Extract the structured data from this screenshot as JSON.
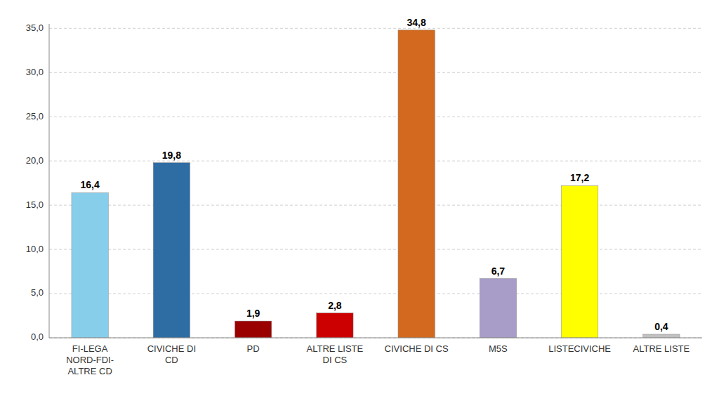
{
  "chart_data": {
    "type": "bar",
    "categories": [
      "FI-LEGA\nNORD-FDI-\nALTRE CD",
      "CIVICHE DI\nCD",
      "PD",
      "ALTRE LISTE\nDI CS",
      "CIVICHE DI CS",
      "M5S",
      "LISTECIVICHE",
      "ALTRE LISTE"
    ],
    "values": [
      16.4,
      19.8,
      1.9,
      2.8,
      34.8,
      6.7,
      17.2,
      0.4
    ],
    "value_labels": [
      "16,4",
      "19,8",
      "1,9",
      "2,8",
      "34,8",
      "6,7",
      "17,2",
      "0,4"
    ],
    "colors": [
      "#87CEEB",
      "#2E6DA4",
      "#9B0000",
      "#CC0000",
      "#D2691E",
      "#A89CC8",
      "#FFFF00",
      "#C0C0C0"
    ],
    "ylim": [
      0,
      35.5
    ],
    "yticks": [
      {
        "value": 0.0,
        "label": "0,0"
      },
      {
        "value": 5.0,
        "label": "5,0"
      },
      {
        "value": 10.0,
        "label": "10,0"
      },
      {
        "value": 15.0,
        "label": "15,0"
      },
      {
        "value": 20.0,
        "label": "20,0"
      },
      {
        "value": 25.0,
        "label": "25,0"
      },
      {
        "value": 30.0,
        "label": "30,0"
      },
      {
        "value": 35.0,
        "label": "35,0"
      }
    ],
    "grid": true,
    "data_labels": true
  }
}
